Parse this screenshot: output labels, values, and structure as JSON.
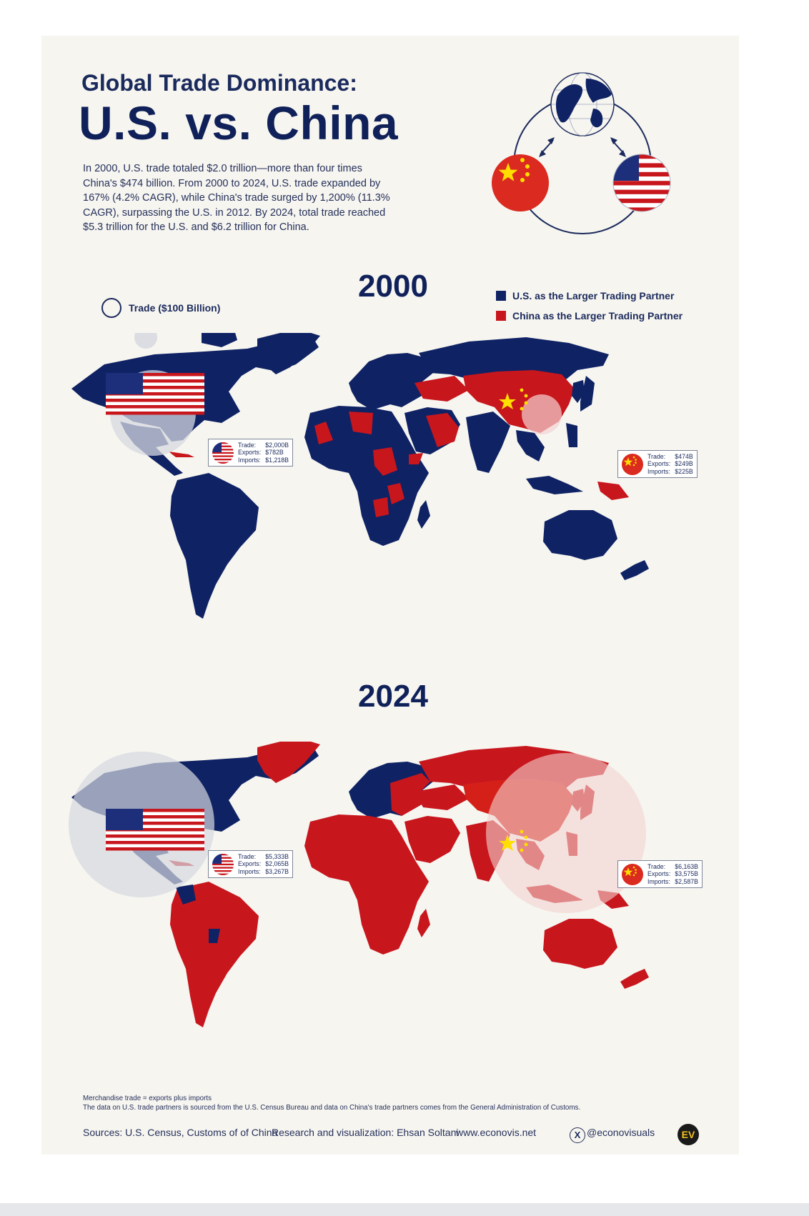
{
  "title_line1": "Global Trade Dominance:",
  "title_line2": "U.S. vs. China",
  "intro": "In 2000, U.S. trade totaled $2.0 trillion—more than four times China's $474 billion. From 2000 to 2024, U.S. trade expanded by 167% (4.2% CAGR), while China's trade surged by 1,200% (11.3% CAGR), surpassing the U.S. in 2012. By 2024, total trade reached $5.3 trillion for the U.S. and $6.2 trillion for China.",
  "colors": {
    "us": "#0f2264",
    "china": "#c8161d",
    "background": "#f6f5f0"
  },
  "legend": {
    "scale_label": "Trade ($100 Billion)",
    "us_label": "U.S. as the Larger Trading Partner",
    "china_label": "China as the Larger Trading Partner"
  },
  "map_2000": {
    "year": "2000",
    "us": {
      "trade": "$2,000B",
      "exports": "$782B",
      "imports": "$1,218B"
    },
    "china": {
      "trade": "$474B",
      "exports": "$249B",
      "imports": "$225B"
    }
  },
  "map_2024": {
    "year": "2024",
    "us": {
      "trade": "$5,333B",
      "exports": "$2,065B",
      "imports": "$3,267B"
    },
    "china": {
      "trade": "$6,163B",
      "exports": "$3,575B",
      "imports": "$2,587B"
    }
  },
  "labels": {
    "trade": "Trade:",
    "exports": "Exports:",
    "imports": "Imports:"
  },
  "notes": {
    "line1": "Merchandise trade = exports plus imports",
    "line2": "The data on U.S. trade partners is sourced from the U.S. Census Bureau and data on China's trade partners comes from the General Administration of Customs."
  },
  "footer": {
    "sources": "Sources: U.S. Census, Customs of of China",
    "research": "Research and visualization: Ehsan Soltani",
    "website": "www.econovis.net",
    "handle": "@econovisuals",
    "logo": "EV"
  }
}
